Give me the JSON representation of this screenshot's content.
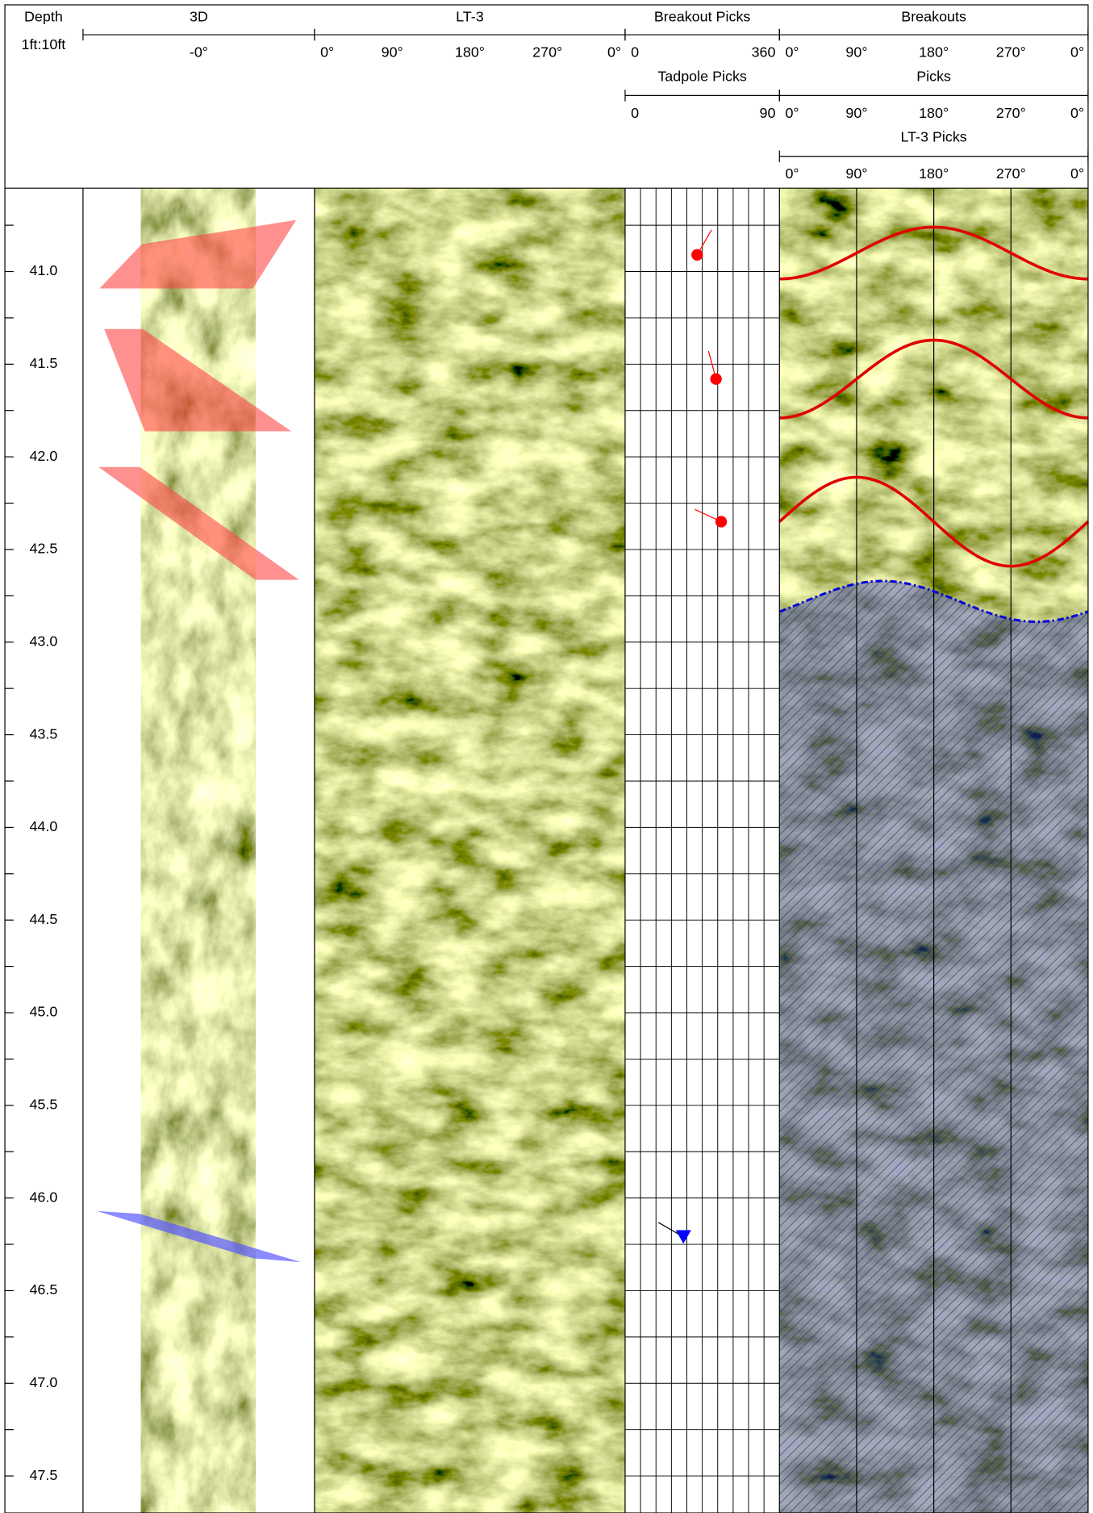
{
  "depth_track": {
    "title": "Depth",
    "scale": "1ft:10ft",
    "ylim": [
      40.55,
      47.7
    ],
    "yticks": [
      {
        "value": 41,
        "label": "41.0"
      },
      {
        "value": 41.5,
        "label": "41.5"
      },
      {
        "value": 42,
        "label": "42.0"
      },
      {
        "value": 42.5,
        "label": "42.5"
      },
      {
        "value": 43,
        "label": "43.0"
      },
      {
        "value": 43.5,
        "label": "43.5"
      },
      {
        "value": 44,
        "label": "44.0"
      },
      {
        "value": 44.5,
        "label": "44.5"
      },
      {
        "value": 45,
        "label": "45.0"
      },
      {
        "value": 45.5,
        "label": "45.5"
      },
      {
        "value": 46,
        "label": "46.0"
      },
      {
        "value": 46.5,
        "label": "46.5"
      },
      {
        "value": 47,
        "label": "47.0"
      },
      {
        "value": 47.5,
        "label": "47.5"
      }
    ]
  },
  "tracks": [
    {
      "rows": [
        {
          "title": "3D",
          "labels": [
            "-0°"
          ]
        }
      ]
    },
    {
      "rows": [
        {
          "title": "LT-3",
          "labels": [
            "0°",
            "90°",
            "180°",
            "270°",
            "0°"
          ]
        }
      ]
    },
    {
      "rows": [
        {
          "title": "Breakout Picks",
          "labels": [
            "0",
            "360"
          ]
        },
        {
          "title": "Tadpole Picks",
          "labels": [
            "0",
            "90"
          ]
        }
      ]
    },
    {
      "rows": [
        {
          "title": "Breakouts",
          "labels": [
            "0°",
            "90°",
            "180°",
            "270°",
            "0°"
          ]
        },
        {
          "title": "Picks",
          "labels": [
            "0°",
            "90°",
            "180°",
            "270°",
            "0°"
          ]
        },
        {
          "title": "LT-3 Picks",
          "labels": [
            "0°",
            "90°",
            "180°",
            "270°",
            "0°"
          ]
        }
      ]
    }
  ],
  "tadpoles": [
    {
      "depth": 40.91,
      "dip": 42,
      "azimuth": 30,
      "color": "#ff0000",
      "shape": "circle"
    },
    {
      "depth": 41.58,
      "dip": 53,
      "azimuth": 345,
      "color": "#ff0000",
      "shape": "circle"
    },
    {
      "depth": 42.35,
      "dip": 56,
      "azimuth": 295,
      "color": "#ff0000",
      "shape": "circle"
    },
    {
      "depth": 46.21,
      "dip": 34,
      "azimuth": 300,
      "color": "#0000ff",
      "shape": "triangle"
    }
  ],
  "sinusoids": [
    {
      "depth": 40.9,
      "amplitude": 0.14,
      "trough_azimuth": 0,
      "color": "#e00000",
      "style": "solid"
    },
    {
      "depth": 41.58,
      "amplitude": 0.21,
      "trough_azimuth": 0,
      "color": "#e00000",
      "style": "solid"
    },
    {
      "depth": 42.35,
      "amplitude": 0.24,
      "trough_azimuth": 270,
      "color": "#e00000",
      "style": "solid"
    },
    {
      "depth": 42.78,
      "amplitude": 0.11,
      "trough_azimuth": 300,
      "color": "#0000dd",
      "style": "dashed"
    }
  ]
}
